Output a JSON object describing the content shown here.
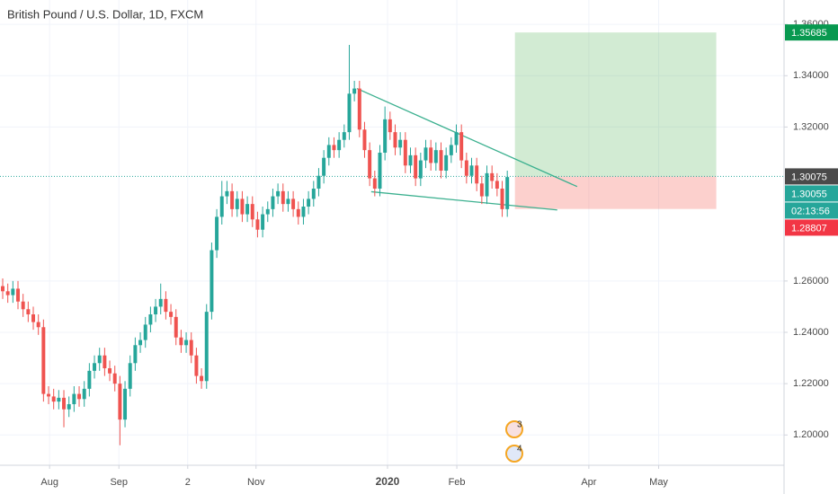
{
  "chart_data": {
    "type": "candlestick",
    "title": "British Pound / U.S. Dollar, 1D, FXCM",
    "up_color": "#26a69a",
    "down_color": "#ef5350",
    "open": [
      1.258,
      1.256,
      1.2545,
      1.257,
      1.252,
      1.249,
      1.247,
      1.244,
      1.242,
      1.216,
      1.215,
      1.213,
      1.2145,
      1.21,
      1.212,
      1.216,
      1.214,
      1.218,
      1.225,
      1.228,
      1.231,
      1.226,
      1.224,
      1.22,
      1.206,
      1.218,
      1.228,
      1.235,
      1.237,
      1.243,
      1.247,
      1.25,
      1.253,
      1.248,
      1.246,
      1.238,
      1.235,
      1.237,
      1.231,
      1.223,
      1.221,
      1.248,
      1.272,
      1.285,
      1.293,
      1.295,
      1.288,
      1.292,
      1.286,
      1.29,
      1.284,
      1.28,
      1.286,
      1.288,
      1.293,
      1.295,
      1.29,
      1.292,
      1.288,
      1.285,
      1.289,
      1.292,
      1.296,
      1.301,
      1.308,
      1.313,
      1.311,
      1.315,
      1.318,
      1.333,
      1.335,
      1.319,
      1.311,
      1.3,
      1.296,
      1.31,
      1.323,
      1.318,
      1.312,
      1.315,
      1.305,
      1.309,
      1.3,
      1.307,
      1.312,
      1.306,
      1.311,
      1.303,
      1.309,
      1.313,
      1.318,
      1.307,
      1.301,
      1.305,
      1.298,
      1.293,
      1.302,
      1.299,
      1.296,
      1.288
    ],
    "high": [
      1.261,
      1.259,
      1.26,
      1.26,
      1.255,
      1.252,
      1.25,
      1.247,
      1.245,
      1.219,
      1.218,
      1.2175,
      1.2175,
      1.215,
      1.219,
      1.219,
      1.221,
      1.228,
      1.231,
      1.234,
      1.234,
      1.229,
      1.227,
      1.223,
      1.221,
      1.231,
      1.238,
      1.24,
      1.246,
      1.25,
      1.253,
      1.259,
      1.256,
      1.251,
      1.249,
      1.241,
      1.24,
      1.24,
      1.234,
      1.226,
      1.251,
      1.275,
      1.288,
      1.299,
      1.299,
      1.298,
      1.295,
      1.295,
      1.293,
      1.293,
      1.287,
      1.289,
      1.291,
      1.296,
      1.298,
      1.298,
      1.295,
      1.295,
      1.291,
      1.292,
      1.295,
      1.299,
      1.304,
      1.311,
      1.316,
      1.316,
      1.318,
      1.321,
      1.352,
      1.338,
      1.338,
      1.322,
      1.314,
      1.303,
      1.313,
      1.328,
      1.326,
      1.321,
      1.318,
      1.318,
      1.312,
      1.312,
      1.31,
      1.315,
      1.315,
      1.314,
      1.314,
      1.312,
      1.316,
      1.321,
      1.321,
      1.31,
      1.308,
      1.308,
      1.301,
      1.305,
      1.305,
      1.302,
      1.299,
      1.303
    ],
    "low": [
      1.253,
      1.2515,
      1.2515,
      1.249,
      1.246,
      1.244,
      1.241,
      1.239,
      1.213,
      1.212,
      1.21,
      1.21,
      1.203,
      1.207,
      1.209,
      1.211,
      1.211,
      1.215,
      1.222,
      1.225,
      1.223,
      1.221,
      1.217,
      1.196,
      1.203,
      1.215,
      1.225,
      1.232,
      1.234,
      1.24,
      1.244,
      1.247,
      1.245,
      1.243,
      1.235,
      1.232,
      1.232,
      1.228,
      1.22,
      1.218,
      1.218,
      1.245,
      1.269,
      1.282,
      1.29,
      1.285,
      1.285,
      1.283,
      1.283,
      1.281,
      1.277,
      1.277,
      1.283,
      1.285,
      1.29,
      1.287,
      1.287,
      1.285,
      1.282,
      1.282,
      1.286,
      1.289,
      1.293,
      1.298,
      1.305,
      1.308,
      1.308,
      1.312,
      1.315,
      1.33,
      1.316,
      1.308,
      1.297,
      1.293,
      1.293,
      1.307,
      1.315,
      1.309,
      1.309,
      1.302,
      1.302,
      1.297,
      1.297,
      1.304,
      1.303,
      1.303,
      1.3,
      1.3,
      1.306,
      1.31,
      1.304,
      1.298,
      1.298,
      1.295,
      1.29,
      1.29,
      1.296,
      1.293,
      1.285,
      1.285
    ],
    "close": [
      1.256,
      1.2545,
      1.257,
      1.252,
      1.249,
      1.247,
      1.244,
      1.242,
      1.216,
      1.215,
      1.213,
      1.2145,
      1.21,
      1.212,
      1.216,
      1.214,
      1.218,
      1.225,
      1.228,
      1.231,
      1.226,
      1.224,
      1.22,
      1.206,
      1.218,
      1.228,
      1.235,
      1.237,
      1.243,
      1.247,
      1.25,
      1.253,
      1.248,
      1.246,
      1.238,
      1.235,
      1.237,
      1.231,
      1.223,
      1.221,
      1.248,
      1.272,
      1.285,
      1.293,
      1.295,
      1.288,
      1.292,
      1.286,
      1.29,
      1.284,
      1.28,
      1.286,
      1.288,
      1.293,
      1.295,
      1.29,
      1.292,
      1.288,
      1.285,
      1.289,
      1.292,
      1.296,
      1.301,
      1.308,
      1.313,
      1.311,
      1.315,
      1.318,
      1.333,
      1.335,
      1.319,
      1.311,
      1.3,
      1.296,
      1.31,
      1.323,
      1.318,
      1.312,
      1.315,
      1.305,
      1.309,
      1.3,
      1.307,
      1.312,
      1.306,
      1.311,
      1.303,
      1.309,
      1.313,
      1.318,
      1.307,
      1.301,
      1.305,
      1.298,
      1.293,
      1.302,
      1.299,
      1.296,
      1.288,
      1.3005
    ],
    "xlim": [
      -0.53,
      153.3
    ],
    "ylim": [
      1.1882,
      1.3695
    ],
    "xticks": [
      {
        "value": 9.2,
        "label": "Aug"
      },
      {
        "value": 22.8,
        "label": "Sep"
      },
      {
        "value": 36.3,
        "label": "2"
      },
      {
        "value": 49.7,
        "label": "Nov"
      },
      {
        "value": 75.5,
        "label": "2020"
      },
      {
        "value": 89.1,
        "label": "Feb"
      },
      {
        "value": 115,
        "label": "Apr"
      },
      {
        "value": 128.7,
        "label": "May"
      }
    ],
    "yticks": [
      {
        "value": 1.36,
        "label": "1.36000"
      },
      {
        "value": 1.34,
        "label": "1.34000"
      },
      {
        "value": 1.32,
        "label": "1.32000"
      },
      {
        "value": 1.26,
        "label": "1.26000"
      },
      {
        "value": 1.24,
        "label": "1.24000"
      },
      {
        "value": 1.22,
        "label": "1.22000"
      },
      {
        "value": 1.2,
        "label": "1.20000"
      }
    ],
    "grid": true,
    "position": {
      "start": 100.5,
      "end": 140,
      "target": 1.35685,
      "entry": 1.30075,
      "stop": 1.28807
    },
    "last_price": 1.30055,
    "countdown": "02:13:56",
    "trendlines": [
      {
        "x": [
          69.5,
          112.7
        ],
        "y": [
          1.335,
          1.2968
        ],
        "color": "#3bb08f"
      },
      {
        "x": [
          72.3,
          108.8
        ],
        "y": [
          1.2948,
          1.2877
        ],
        "color": "#3bb08f"
      }
    ],
    "events": [
      3,
      4
    ]
  }
}
